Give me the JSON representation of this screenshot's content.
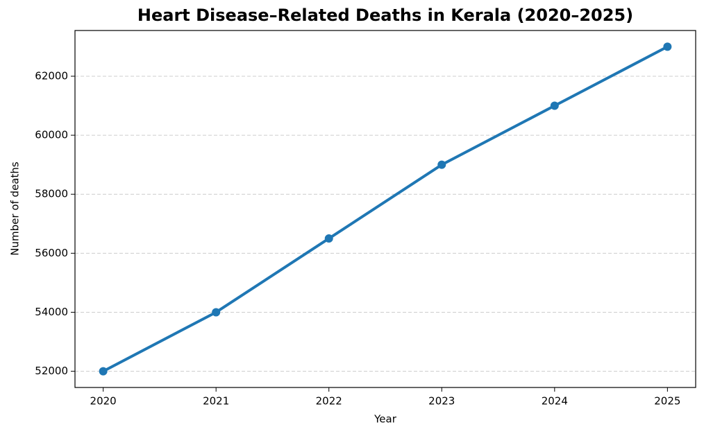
{
  "chart_data": {
    "type": "line",
    "title": "Heart Disease–Related Deaths in Kerala (2020–2025)",
    "x_label": "Year",
    "y_label": "Number of deaths",
    "x": [
      2020,
      2021,
      2022,
      2023,
      2024,
      2025
    ],
    "series": [
      {
        "name": "Deaths",
        "color": "#1f77b4",
        "values": [
          52000,
          54000,
          56500,
          59000,
          61000,
          63000
        ]
      }
    ],
    "xlim": [
      2019.75,
      2025.25
    ],
    "xticks": [
      2020,
      2021,
      2022,
      2023,
      2024,
      2025
    ],
    "ylim": [
      51450,
      63550
    ],
    "yticks": [
      52000,
      54000,
      56000,
      58000,
      60000,
      62000
    ],
    "grid": true
  }
}
